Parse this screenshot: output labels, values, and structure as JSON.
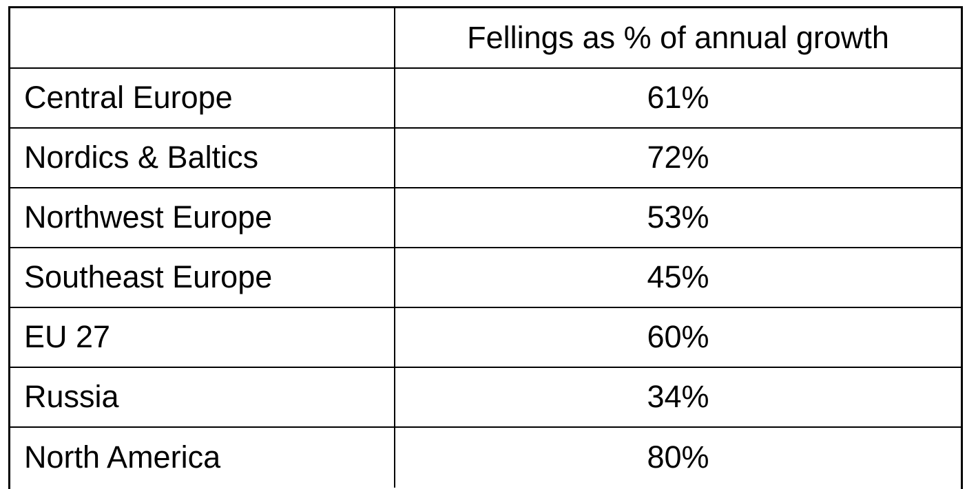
{
  "table": {
    "header": [
      "Fellings as % of annual growth"
    ],
    "rows": [
      [
        "Central Europe",
        "61%"
      ],
      [
        "Nordics & Baltics",
        "72%"
      ],
      [
        "Northwest Europe",
        "53%"
      ],
      [
        "Southeast Europe",
        "45%"
      ],
      [
        "EU 27",
        "60%"
      ],
      [
        "Russia",
        "34%"
      ],
      [
        "North America",
        "80%"
      ]
    ]
  }
}
